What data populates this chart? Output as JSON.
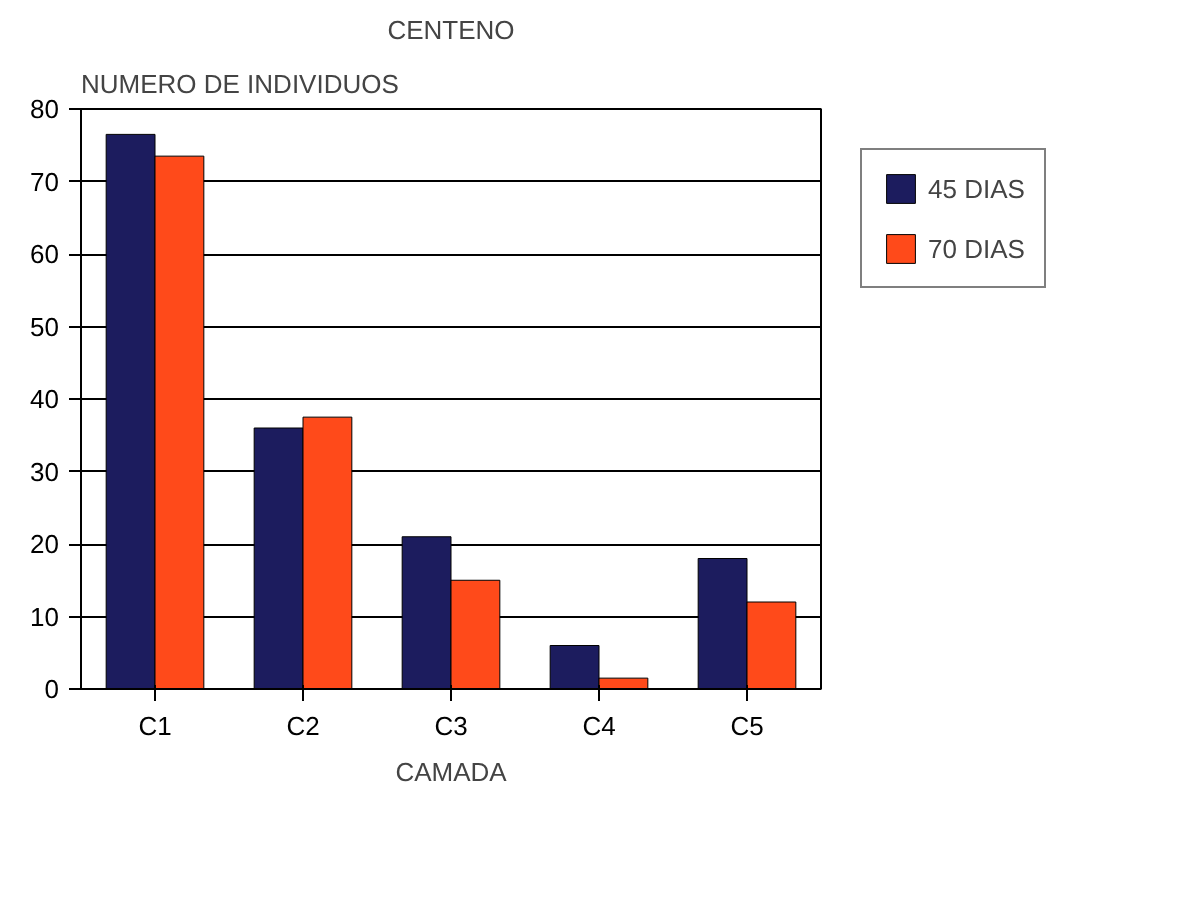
{
  "chart_data": {
    "type": "bar",
    "title": "CENTENO",
    "xlabel": "CAMADA",
    "ylabel": "NUMERO DE INDIVIDUOS",
    "categories": [
      "C1",
      "C2",
      "C3",
      "C4",
      "C5"
    ],
    "series": [
      {
        "name": "45 DIAS",
        "color": "#1c1c5e",
        "values": [
          76.5,
          36,
          21,
          6,
          18
        ]
      },
      {
        "name": "70 DIAS",
        "color": "#ff4a1a",
        "values": [
          73.5,
          37.5,
          15,
          1.5,
          12
        ]
      }
    ],
    "ylim": [
      0,
      80
    ],
    "yticks": [
      0,
      10,
      20,
      30,
      40,
      50,
      60,
      70,
      80
    ],
    "grid": "y",
    "legend": "top right"
  }
}
